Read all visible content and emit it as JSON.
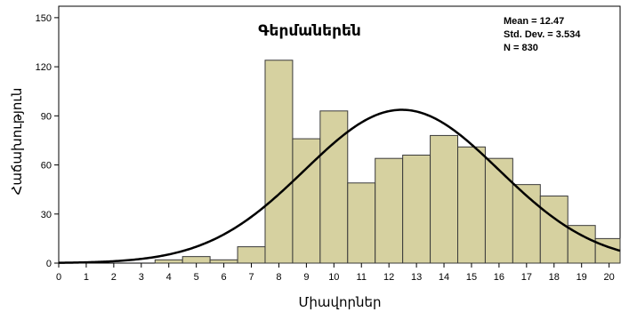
{
  "chart_data": {
    "type": "bar",
    "title": "Գերմաներեն",
    "xlabel": "Միավորներ",
    "ylabel": "Հաճախություն",
    "xlim": [
      0,
      20.4
    ],
    "ylim": [
      0,
      157
    ],
    "x_ticks": [
      "0",
      "1",
      "2",
      "3",
      "4",
      "5",
      "6",
      "7",
      "8",
      "9",
      "10",
      "11",
      "12",
      "13",
      "14",
      "15",
      "16",
      "17",
      "18",
      "19",
      "20"
    ],
    "y_ticks": [
      "0",
      "30",
      "60",
      "90",
      "120",
      "150"
    ],
    "bins": [
      {
        "start": 3.5,
        "end": 4.5,
        "value": 2
      },
      {
        "start": 4.5,
        "end": 5.5,
        "value": 4
      },
      {
        "start": 5.5,
        "end": 6.5,
        "value": 2
      },
      {
        "start": 6.5,
        "end": 7.5,
        "value": 10
      },
      {
        "start": 7.5,
        "end": 8.5,
        "value": 124
      },
      {
        "start": 8.5,
        "end": 9.5,
        "value": 76
      },
      {
        "start": 9.5,
        "end": 10.5,
        "value": 93
      },
      {
        "start": 10.5,
        "end": 11.5,
        "value": 49
      },
      {
        "start": 11.5,
        "end": 12.5,
        "value": 64
      },
      {
        "start": 12.5,
        "end": 13.5,
        "value": 66
      },
      {
        "start": 13.5,
        "end": 14.5,
        "value": 78
      },
      {
        "start": 14.5,
        "end": 15.5,
        "value": 71
      },
      {
        "start": 15.5,
        "end": 16.5,
        "value": 64
      },
      {
        "start": 16.5,
        "end": 17.5,
        "value": 48
      },
      {
        "start": 17.5,
        "end": 18.5,
        "value": 41
      },
      {
        "start": 18.5,
        "end": 19.5,
        "value": 23
      },
      {
        "start": 19.5,
        "end": 20.5,
        "value": 15
      }
    ],
    "normal_curve": {
      "mean": 12.47,
      "sd": 3.534,
      "n": 830,
      "bin_width": 1
    },
    "stats": [
      "Mean = 12.47",
      "Std. Dev. = 3.534",
      "N = 830"
    ],
    "grid": false,
    "colors": {
      "bar_fill": "#d6d1a0",
      "bar_stroke": "#3a3a3a",
      "curve": "#000000",
      "axis": "#000000"
    }
  }
}
